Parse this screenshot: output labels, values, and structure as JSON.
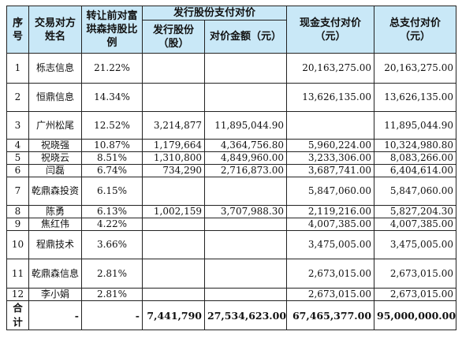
{
  "headers": {
    "seq": "序号",
    "counterparty": "交易对方姓名",
    "ratio": "转让前对富珙森持股比例",
    "share_payment": "发行股份支付对价",
    "shares": "发行股份（股）",
    "consideration": "对价金额（元）",
    "cash": "现金支付对价（元）",
    "total": "总支付对价（元）"
  },
  "rows": [
    {
      "seq": "1",
      "name": "栎志信息",
      "ratio": "21.22%",
      "shares": "",
      "amount": "",
      "cash": "20,163,275.00",
      "total": "20,163,275.00"
    },
    {
      "seq": "2",
      "name": "恒鼎信息",
      "ratio": "14.34%",
      "shares": "",
      "amount": "",
      "cash": "13,626,135.00",
      "total": "13,626,135.00"
    },
    {
      "seq": "3",
      "name": "广州松尾",
      "ratio": "12.52%",
      "shares": "3,214,877",
      "amount": "11,895,044.90",
      "cash": "",
      "total": "11,895,044.90"
    },
    {
      "seq": "4",
      "name": "祝晓强",
      "ratio": "10.87%",
      "shares": "1,179,664",
      "amount": "4,364,756.80",
      "cash": "5,960,224.00",
      "total": "10,324,980.80"
    },
    {
      "seq": "5",
      "name": "祝晓云",
      "ratio": "8.51%",
      "shares": "1,310,800",
      "amount": "4,849,960.00",
      "cash": "3,233,306.00",
      "total": "8,083,266.00"
    },
    {
      "seq": "6",
      "name": "闫磊",
      "ratio": "6.74%",
      "shares": "734,290",
      "amount": "2,716,873.00",
      "cash": "3,687,741.00",
      "total": "6,404,614.00"
    },
    {
      "seq": "7",
      "name": "乾鼎森投资",
      "ratio": "6.15%",
      "shares": "",
      "amount": "",
      "cash": "5,847,060.00",
      "total": "5,847,060.00"
    },
    {
      "seq": "8",
      "name": "陈勇",
      "ratio": "6.13%",
      "shares": "1,002,159",
      "amount": "3,707,988.30",
      "cash": "2,119,216.00",
      "total": "5,827,204.30"
    },
    {
      "seq": "9",
      "name": "焦红伟",
      "ratio": "4.22%",
      "shares": "",
      "amount": "",
      "cash": "4,007,385.00",
      "total": "4,007,385.00"
    },
    {
      "seq": "10",
      "name": "程鼎技术",
      "ratio": "3.66%",
      "shares": "",
      "amount": "",
      "cash": "3,475,005.00",
      "total": "3,475,005.00"
    },
    {
      "seq": "11",
      "name": "乾鼎森信息",
      "ratio": "2.81%",
      "shares": "",
      "amount": "",
      "cash": "2,673,015.00",
      "total": "2,673,015.00"
    },
    {
      "seq": "12",
      "name": "李小娟",
      "ratio": "2.81%",
      "shares": "",
      "amount": "",
      "cash": "2,673,015.00",
      "total": "2,673,015.00"
    }
  ],
  "total_row": {
    "label": "合计",
    "name": "-",
    "ratio": "-",
    "shares": "7,441,790",
    "amount": "27,534,623.00",
    "cash": "67,465,377.00",
    "total": "95,000,000.00"
  }
}
